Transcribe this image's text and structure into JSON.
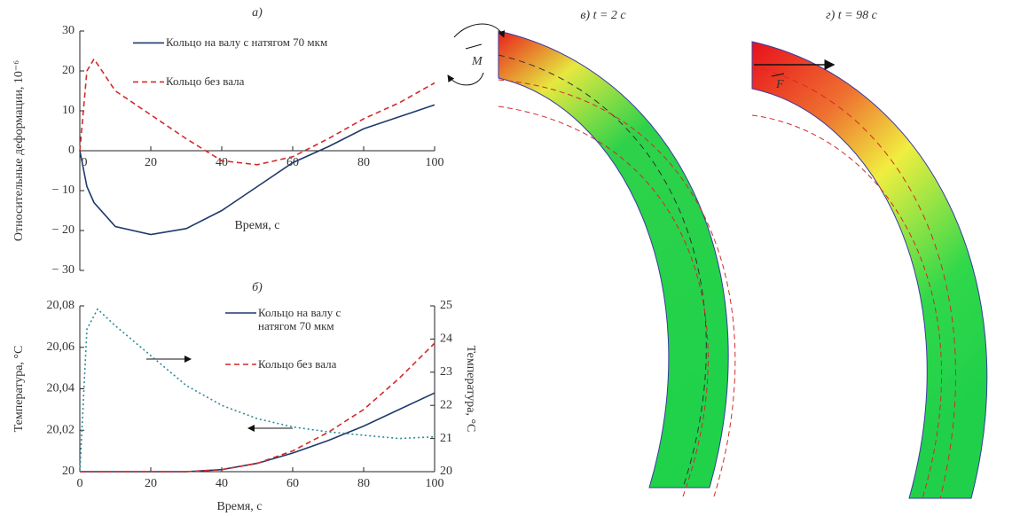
{
  "chart_data": [
    {
      "type": "line",
      "title": "а)",
      "x_label": "Время, с",
      "y_label": "Относительные деформации, 10⁻⁶",
      "x": [
        0,
        2,
        4,
        10,
        20,
        30,
        40,
        50,
        60,
        70,
        80,
        90,
        100
      ],
      "series": [
        {
          "name": "Кольцо на валу с натягом 70 мкм",
          "color": "#1f3a6b",
          "dash": "solid",
          "values": [
            0,
            -9,
            -13,
            -19,
            -21,
            -19.5,
            -15,
            -9,
            -3,
            1,
            5.5,
            8.5,
            11.5
          ]
        },
        {
          "name": "Кольцо без вала",
          "color": "#d42a2a",
          "dash": "dashed",
          "values": [
            0,
            20,
            23,
            15,
            9,
            3,
            -2.5,
            -3.5,
            -1.5,
            3,
            8,
            12,
            17
          ]
        }
      ],
      "xlim": [
        0,
        100
      ],
      "xticks": [
        0,
        20,
        40,
        60,
        80,
        100
      ],
      "ylim": [
        -30,
        30
      ],
      "yticks": [
        {
          "value": -30,
          "label": "− 30"
        },
        {
          "value": -20,
          "label": "− 20"
        },
        {
          "value": -10,
          "label": "− 10"
        },
        0,
        10,
        20,
        30
      ],
      "legend": "upper center",
      "grid": false
    },
    {
      "type": "line",
      "title": "б)",
      "x_label": "Время, с",
      "y_label": "Температура, °С",
      "y2_label": "Температура, °С",
      "x": [
        0,
        2,
        5,
        10,
        20,
        30,
        40,
        50,
        60,
        70,
        80,
        90,
        100
      ],
      "series": [
        {
          "name": "Кольцо на валу с натягом 70 мкм",
          "color": "#1f3a6b",
          "dash": "solid",
          "values": [
            20,
            20,
            20,
            20,
            20,
            20,
            20.001,
            20.004,
            20.009,
            20.015,
            20.022,
            20.03,
            20.038
          ]
        },
        {
          "name": "Кольцо без вала",
          "color": "#d42a2a",
          "dash": "dashed",
          "values": [
            20,
            20,
            20,
            20,
            20,
            20,
            20.001,
            20.004,
            20.01,
            20.019,
            20.03,
            20.045,
            20.062
          ]
        },
        {
          "color": "#2a8a9a",
          "dash": "dotted",
          "axis": "y2",
          "values": [
            20,
            24.3,
            24.9,
            24.4,
            23.5,
            22.6,
            22.0,
            21.6,
            21.35,
            21.2,
            21.1,
            21.0,
            21.05
          ]
        }
      ],
      "xlim": [
        0,
        100
      ],
      "xticks": [
        0,
        20,
        40,
        60,
        80,
        100
      ],
      "ylim": [
        20,
        20.08
      ],
      "yticks": [
        20,
        {
          "value": 20.02,
          "label": "20,02"
        },
        {
          "value": 20.04,
          "label": "20,04"
        },
        {
          "value": 20.06,
          "label": "20,06"
        },
        {
          "value": 20.08,
          "label": "20,08"
        }
      ],
      "y2lim": [
        20,
        25
      ],
      "y2ticks": [
        20,
        21,
        22,
        23,
        24,
        25
      ],
      "legend": "upper right",
      "grid": false
    }
  ],
  "diagrams": [
    {
      "title": "в) t = 2 с",
      "label": "M"
    },
    {
      "title": "г) t = 98 с",
      "label": "F"
    }
  ]
}
